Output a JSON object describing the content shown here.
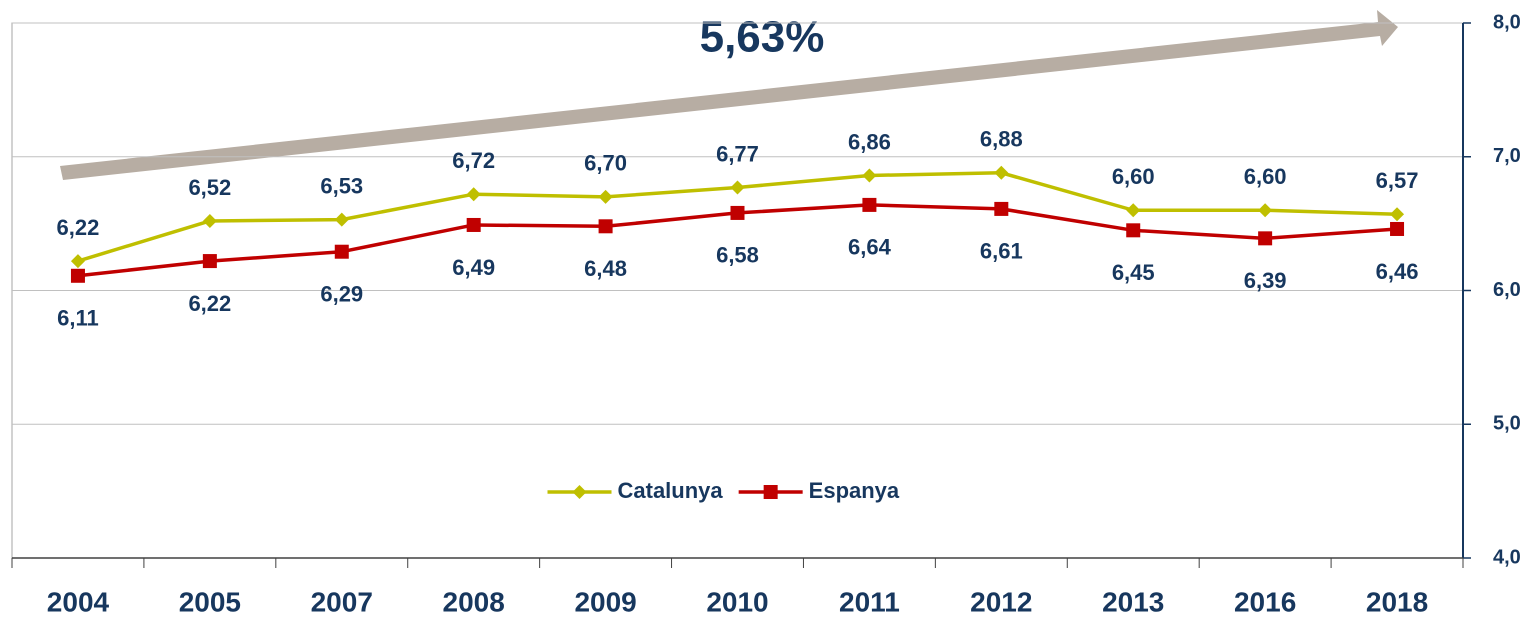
{
  "chart_data": {
    "type": "line",
    "annotation": "5,63%",
    "categories": [
      "2004",
      "2005",
      "2007",
      "2008",
      "2009",
      "2010",
      "2011",
      "2012",
      "2013",
      "2016",
      "2018"
    ],
    "series": [
      {
        "name": "Catalunya",
        "color": "#bfbf00",
        "marker": "diamond",
        "values": [
          6.22,
          6.52,
          6.53,
          6.72,
          6.7,
          6.77,
          6.86,
          6.88,
          6.6,
          6.6,
          6.57
        ],
        "value_labels": [
          "6,22",
          "6,52",
          "6,53",
          "6,72",
          "6,70",
          "6,77",
          "6,86",
          "6,88",
          "6,60",
          "6,60",
          "6,57"
        ]
      },
      {
        "name": "Espanya",
        "color": "#c00000",
        "marker": "square",
        "values": [
          6.11,
          6.22,
          6.29,
          6.49,
          6.48,
          6.58,
          6.64,
          6.61,
          6.45,
          6.39,
          6.46
        ],
        "value_labels": [
          "6,11",
          "6,22",
          "6,29",
          "6,49",
          "6,48",
          "6,58",
          "6,64",
          "6,61",
          "6,45",
          "6,39",
          "6,46"
        ]
      }
    ],
    "ylim": [
      4,
      8
    ],
    "yticks": [
      {
        "value": 4,
        "label": "4,0"
      },
      {
        "value": 5,
        "label": "5,0"
      },
      {
        "value": 6,
        "label": "6,0"
      },
      {
        "value": 7,
        "label": "7,0"
      },
      {
        "value": 8,
        "label": "8,0"
      }
    ],
    "y_axis_side": "right",
    "grid": true,
    "legend": "center"
  }
}
